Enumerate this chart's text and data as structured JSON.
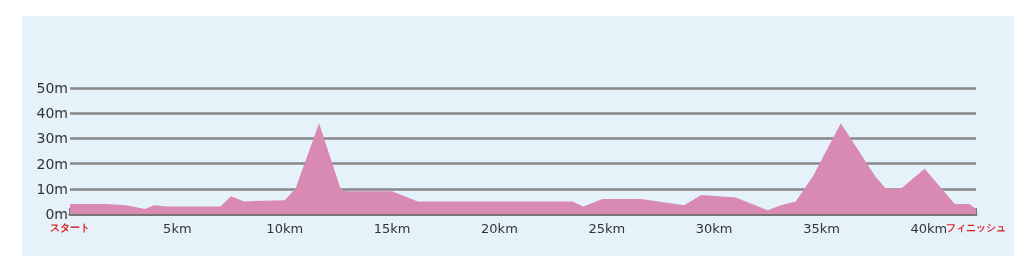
{
  "chart_data": {
    "type": "area",
    "color": "#d98ab2",
    "x": [
      0,
      1.7,
      2.6,
      3.5,
      3.9,
      4.5,
      7.0,
      7.5,
      8.1,
      10.0,
      10.5,
      11.6,
      12.6,
      12.9,
      15.0,
      16.2,
      23.4,
      23.9,
      24.8,
      26.6,
      28.6,
      29.4,
      31.0,
      32.5,
      33.1,
      33.8,
      34.6,
      35.9,
      37.5,
      38.0,
      38.7,
      39.8,
      40.8,
      41.2,
      41.9,
      42.195
    ],
    "values": [
      4,
      4,
      3.5,
      2,
      3.5,
      3,
      3,
      7,
      5,
      5.5,
      10,
      36,
      10,
      9,
      9,
      5,
      5,
      3,
      6,
      6,
      3.5,
      7.5,
      6.5,
      1.5,
      3.5,
      5,
      15,
      36,
      15,
      10,
      10,
      18,
      8,
      4,
      4,
      2
    ],
    "xlim": [
      0,
      42.195
    ],
    "xticks": [
      {
        "value": 0,
        "label": "スタート"
      },
      {
        "value": 5,
        "label": "5km"
      },
      {
        "value": 10,
        "label": "10km"
      },
      {
        "value": 15,
        "label": "15km"
      },
      {
        "value": 20,
        "label": "20km"
      },
      {
        "value": 25,
        "label": "25km"
      },
      {
        "value": 30,
        "label": "30km"
      },
      {
        "value": 35,
        "label": "35km"
      },
      {
        "value": 40,
        "label": "40km"
      },
      {
        "value": 42.195,
        "label": "フィニッシュ"
      }
    ],
    "ylim": [
      0,
      50
    ],
    "yticks": [
      {
        "value": 0,
        "label": "0m"
      },
      {
        "value": 10,
        "label": "10m"
      },
      {
        "value": 20,
        "label": "20m"
      },
      {
        "value": 30,
        "label": "30m"
      },
      {
        "value": 40,
        "label": "40m"
      },
      {
        "value": 50,
        "label": "50m"
      }
    ],
    "grid": "y",
    "marker": "none"
  }
}
